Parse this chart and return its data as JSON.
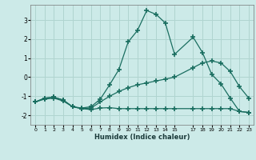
{
  "xlabel": "Humidex (Indice chaleur)",
  "bg_color": "#cceae8",
  "grid_color": "#b0d4d0",
  "line_color": "#1a6e60",
  "xlim": [
    -0.5,
    23.5
  ],
  "ylim": [
    -2.5,
    3.8
  ],
  "yticks": [
    -2,
    -1,
    0,
    1,
    2,
    3
  ],
  "xticks": [
    0,
    1,
    2,
    3,
    4,
    5,
    6,
    7,
    8,
    9,
    10,
    11,
    12,
    13,
    14,
    15,
    17,
    18,
    19,
    20,
    21,
    22,
    23
  ],
  "line1_x": [
    0,
    1,
    2,
    3,
    4,
    5,
    6,
    7,
    8,
    9,
    10,
    11,
    12,
    13,
    14,
    15,
    17,
    18,
    19,
    20,
    21,
    22,
    23
  ],
  "line1_y": [
    -1.3,
    -1.1,
    -1.05,
    -1.2,
    -1.55,
    -1.65,
    -1.62,
    -1.3,
    -1.0,
    -0.75,
    -0.55,
    -0.4,
    -0.3,
    -0.2,
    -0.1,
    0.0,
    0.5,
    0.75,
    0.85,
    0.75,
    0.3,
    -0.5,
    -1.1
  ],
  "line2_x": [
    0,
    1,
    2,
    3,
    4,
    5,
    6,
    7,
    8,
    9,
    10,
    11,
    12,
    13,
    14,
    15,
    17,
    18,
    19,
    20,
    21,
    22,
    23
  ],
  "line2_y": [
    -1.3,
    -1.15,
    -1.1,
    -1.25,
    -1.55,
    -1.65,
    -1.7,
    -1.62,
    -1.6,
    -1.65,
    -1.65,
    -1.65,
    -1.65,
    -1.65,
    -1.65,
    -1.65,
    -1.65,
    -1.65,
    -1.65,
    -1.65,
    -1.65,
    -1.8,
    -1.85
  ],
  "line3_x": [
    0,
    1,
    2,
    3,
    4,
    5,
    6,
    7,
    8,
    9,
    10,
    11,
    12,
    13,
    14,
    15,
    17,
    18,
    19,
    20,
    21,
    22,
    23
  ],
  "line3_y": [
    -1.3,
    -1.1,
    -1.05,
    -1.2,
    -1.55,
    -1.62,
    -1.55,
    -1.15,
    -0.4,
    0.4,
    1.85,
    2.45,
    3.5,
    3.3,
    2.85,
    1.2,
    2.1,
    1.3,
    0.15,
    -0.35,
    -1.1,
    -1.8,
    -1.85
  ]
}
